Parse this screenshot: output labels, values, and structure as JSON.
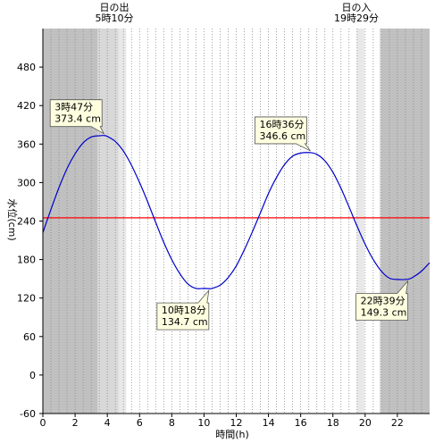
{
  "chart_data": {
    "type": "line",
    "title": "",
    "xlabel": "時間(h)",
    "ylabel": "水位(cm)",
    "xlim": [
      0,
      24
    ],
    "ylim": [
      -60,
      540
    ],
    "x_ticks": [
      0,
      2,
      4,
      6,
      8,
      10,
      12,
      14,
      16,
      18,
      20,
      22
    ],
    "y_ticks": [
      -60,
      0,
      60,
      120,
      180,
      240,
      300,
      360,
      420,
      480
    ],
    "grid": "vertical dotted every 0.5h",
    "reference_line": {
      "value": 245,
      "color": "#ff0000"
    },
    "sunrise": {
      "title": "日の出",
      "time": "5時10分",
      "hour": 5.17
    },
    "sunset": {
      "title": "日の入",
      "time": "19時29分",
      "hour": 19.48
    },
    "shading": {
      "night_color": "#c0c0c0",
      "twilight_color": "#d8d8d8",
      "dawn_color": "#e8e8e8",
      "twilight_ranges": [
        [
          3.4,
          4.7
        ],
        [
          20.9,
          21.0
        ]
      ],
      "dawn_ranges": [
        [
          4.7,
          5.17
        ],
        [
          19.48,
          19.95
        ]
      ],
      "night_ranges": [
        [
          0,
          3.4
        ],
        [
          21.0,
          24
        ]
      ]
    },
    "series": [
      {
        "color": "#0000cc",
        "x": [
          0,
          0.5,
          1,
          1.5,
          2,
          2.5,
          3,
          3.5,
          3.78,
          4,
          4.5,
          5,
          5.5,
          6,
          6.5,
          7,
          7.5,
          8,
          8.5,
          9,
          9.5,
          10,
          10.3,
          10.5,
          11,
          11.5,
          12,
          12.5,
          13,
          13.5,
          14,
          14.5,
          15,
          15.5,
          16,
          16.6,
          17,
          17.5,
          18,
          18.5,
          19,
          19.5,
          20,
          20.5,
          21,
          21.5,
          22,
          22.65,
          23,
          23.5,
          24
        ],
        "y": [
          222,
          258,
          292,
          322,
          345,
          362,
          371,
          373,
          373.4,
          372,
          364,
          349,
          327,
          300,
          270,
          238,
          207,
          180,
          158,
          142,
          135,
          135,
          134.7,
          135,
          140,
          152,
          170,
          195,
          223,
          253,
          283,
          308,
          328,
          341,
          346,
          346.6,
          344,
          334,
          316,
          291,
          262,
          232,
          204,
          180,
          162,
          151,
          149,
          149.3,
          153,
          162,
          175
        ]
      }
    ],
    "annotations": [
      {
        "time": "3時47分",
        "value": "373.4 cm",
        "hour": 3.78,
        "level": 373.4
      },
      {
        "time": "10時18分",
        "value": "134.7 cm",
        "hour": 10.3,
        "level": 134.7
      },
      {
        "time": "16時36分",
        "value": "346.6 cm",
        "hour": 16.6,
        "level": 346.6
      },
      {
        "time": "22時39分",
        "value": "149.3 cm",
        "hour": 22.65,
        "level": 149.3
      }
    ]
  }
}
